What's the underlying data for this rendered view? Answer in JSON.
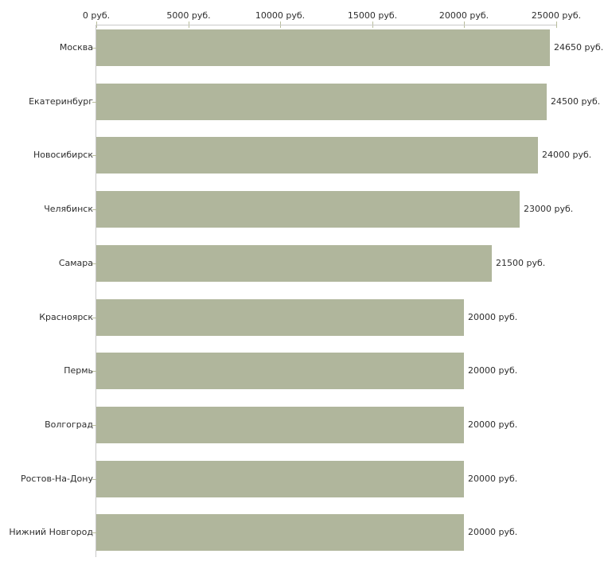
{
  "chart_data": {
    "type": "bar",
    "orientation": "horizontal",
    "title": "",
    "xlabel": "",
    "ylabel": "",
    "unit": "руб.",
    "grid": false,
    "legend": false,
    "xlim": [
      0,
      25000
    ],
    "x_ticks": [
      0,
      5000,
      10000,
      15000,
      20000,
      25000
    ],
    "x_tick_labels": [
      "0 руб.",
      "5000 руб.",
      "10000 руб.",
      "15000 руб.",
      "20000 руб.",
      "25000 руб."
    ],
    "categories": [
      "Москва",
      "Екатеринбург",
      "Новосибирск",
      "Челябинск",
      "Самара",
      "Красноярск",
      "Пермь",
      "Волгоград",
      "Ростов-На-Дону",
      "Нижний Новгород"
    ],
    "values": [
      24650,
      24500,
      24000,
      23000,
      21500,
      20000,
      20000,
      20000,
      20000,
      20000
    ],
    "value_labels": [
      "24650 руб.",
      "24500 руб.",
      "24000 руб.",
      "23000 руб.",
      "21500 руб.",
      "20000 руб.",
      "20000 руб.",
      "20000 руб.",
      "20000 руб.",
      "20000 руб."
    ],
    "colors": {
      "bar": "#b0b69c",
      "axis_line": "#c9c9c9",
      "tick_mark": "#b8bd9c",
      "text": "#2e2e2e",
      "background": "#ffffff"
    }
  }
}
